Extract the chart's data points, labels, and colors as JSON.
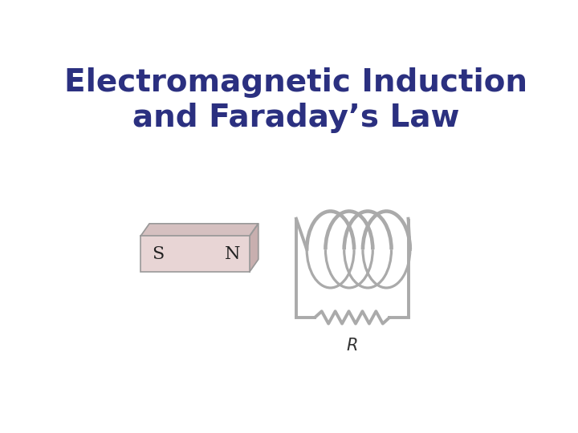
{
  "title_line1": "Electromagnetic Induction",
  "title_line2": "and Faraday’s Law",
  "title_color": "#2B3080",
  "title_fontsize": 28,
  "title_fontweight": "bold",
  "bg_color": "#ffffff",
  "magnet_fill_front": "#e8d5d5",
  "magnet_fill_top": "#d5c0c0",
  "magnet_fill_right": "#c8aFaF",
  "magnet_edge": "#999999",
  "coil_color": "#aaaaaa",
  "coil_lw": 2.8,
  "R_label_color": "#333333",
  "R_label_fontsize": 15
}
